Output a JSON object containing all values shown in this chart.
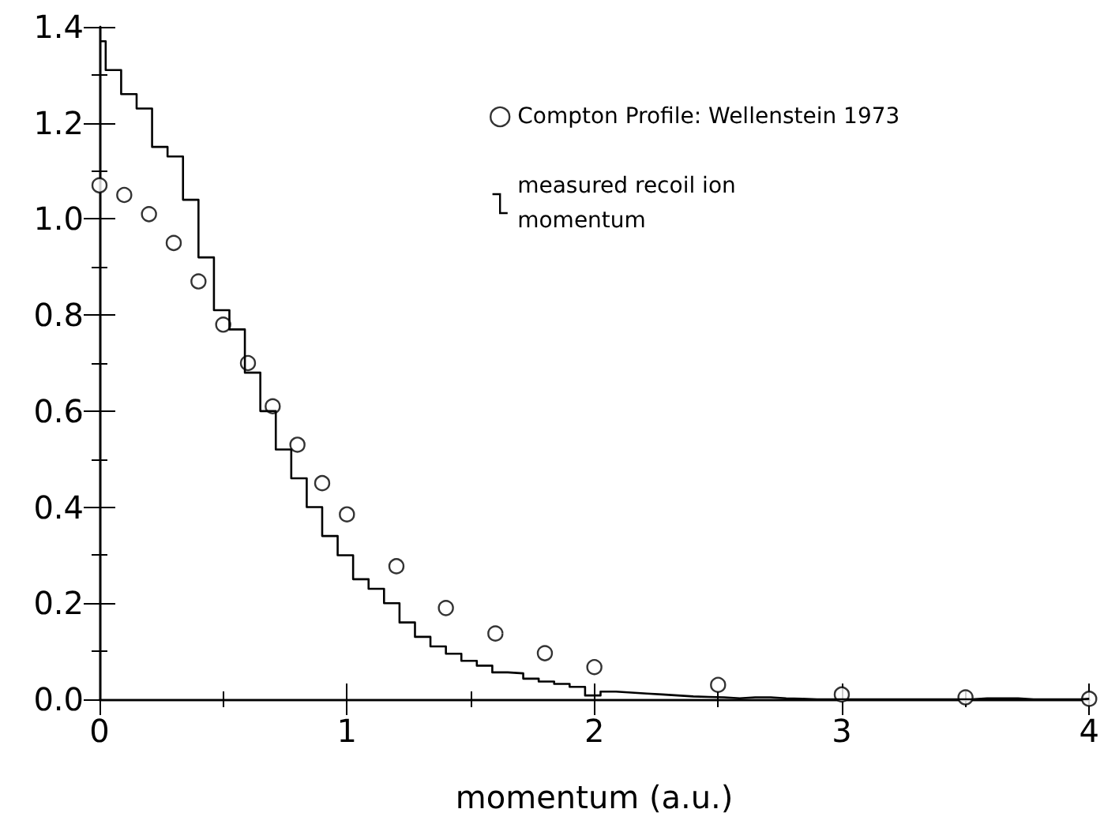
{
  "chart_data": {
    "type": "scatter",
    "xlabel": "momentum (a.u.)",
    "xlim": [
      0,
      4
    ],
    "xticks": [
      0,
      1,
      2,
      3,
      4
    ],
    "ylim": [
      0,
      1.4
    ],
    "yticks": [
      {
        "value": 0,
        "label": "0.0"
      },
      {
        "value": 0.2,
        "label": "0.2"
      },
      {
        "value": 0.4,
        "label": "0.4"
      },
      {
        "value": 0.6,
        "label": "0.6"
      },
      {
        "value": 0.8,
        "label": "0.8"
      },
      {
        "value": 1.0,
        "label": "1.0"
      },
      {
        "value": 1.2,
        "label": "1.2"
      },
      {
        "value": 1.4,
        "label": "1.4"
      }
    ],
    "grid": false,
    "legend": "top right",
    "marker": "circle",
    "series": [
      {
        "name": "Compton Profile: Wellenstein 1973",
        "color": "#000000",
        "x": [
          0,
          0.1,
          0.2,
          0.3,
          0.4,
          0.5,
          0.6,
          0.7,
          0.8,
          0.9,
          1.0,
          1.2,
          1.4,
          1.6,
          1.8,
          2.0,
          2.5,
          3.0,
          3.5,
          4.0
        ],
        "values": [
          1.07,
          1.05,
          1.01,
          0.95,
          0.87,
          0.78,
          0.7,
          0.61,
          0.53,
          0.45,
          0.385,
          0.277,
          0.19,
          0.137,
          0.096,
          0.067,
          0.03,
          0.01,
          0.004,
          0.001
        ]
      },
      {
        "name": "measured recoil ion momentum",
        "type": "histogram",
        "color": "#000000",
        "bins": [
          0,
          0.025,
          0.0875,
          0.15,
          0.2125,
          0.275,
          0.3375,
          0.4,
          0.4625,
          0.525,
          0.5875,
          0.65,
          0.7125,
          0.775,
          0.8375,
          0.9,
          0.9625,
          1.025,
          1.0875,
          1.15,
          1.2125,
          1.275,
          1.3375,
          1.4,
          1.4625,
          1.525,
          1.5875,
          1.65,
          1.7125,
          1.775,
          1.8375,
          1.9,
          1.9625,
          2.025,
          2.0875,
          2.15,
          2.2125,
          2.275,
          2.3375,
          2.4,
          2.4625,
          2.525,
          2.5875,
          2.65,
          2.7125,
          2.775,
          2.8375,
          2.9,
          2.9625,
          3.025,
          3.0875,
          3.15,
          3.2125,
          3.275,
          3.3375,
          3.4,
          3.4625,
          3.525,
          3.5875,
          3.65,
          3.7125,
          3.775,
          3.8375,
          3.9,
          3.9625,
          4
        ],
        "values": [
          1.37,
          1.31,
          1.26,
          1.23,
          1.15,
          1.13,
          1.04,
          0.92,
          0.81,
          0.77,
          0.68,
          0.6,
          0.52,
          0.46,
          0.4,
          0.34,
          0.3,
          0.25,
          0.23,
          0.2,
          0.16,
          0.13,
          0.11,
          0.095,
          0.08,
          0.07,
          0.056,
          0.054,
          0.043,
          0.037,
          0.032,
          0.026,
          0.008,
          0.016,
          0.014,
          0.012,
          0.01,
          0.008,
          0.006,
          0.005,
          0.004,
          0.002,
          0.004,
          0.004,
          0.002,
          0.001,
          0,
          0,
          0,
          0,
          0,
          0,
          0,
          0,
          0,
          0,
          0,
          0.002,
          0.002,
          0.002,
          0,
          0,
          0,
          0,
          0.001
        ]
      }
    ]
  }
}
